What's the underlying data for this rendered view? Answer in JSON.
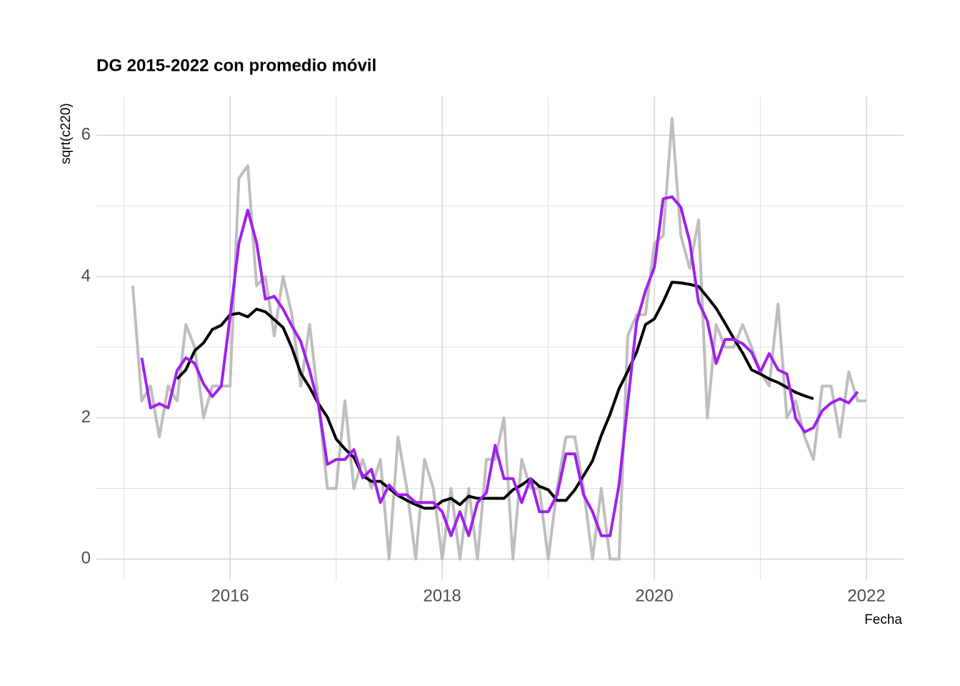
{
  "chart_data": {
    "type": "line",
    "title": "DG 2015-2022 con promedio móvil",
    "x_label": "Fecha",
    "y_label": "sqrt(c220)",
    "xlim": [
      2014.74,
      2022.35
    ],
    "ylim": [
      -0.3,
      6.55
    ],
    "xticks": [
      2016,
      2018,
      2020,
      2022
    ],
    "yticks": [
      0,
      2,
      4,
      6
    ],
    "x_minor_grid": [
      2015,
      2017,
      2019,
      2021
    ],
    "y_minor_grid": [
      1,
      3,
      5
    ],
    "grid": true,
    "x": [
      2015.083,
      2015.167,
      2015.25,
      2015.333,
      2015.417,
      2015.5,
      2015.583,
      2015.667,
      2015.75,
      2015.833,
      2015.917,
      2016,
      2016.083,
      2016.167,
      2016.25,
      2016.333,
      2016.417,
      2016.5,
      2016.583,
      2016.667,
      2016.75,
      2016.833,
      2016.917,
      2017,
      2017.083,
      2017.167,
      2017.25,
      2017.333,
      2017.417,
      2017.5,
      2017.583,
      2017.667,
      2017.75,
      2017.833,
      2017.917,
      2018,
      2018.083,
      2018.167,
      2018.25,
      2018.333,
      2018.417,
      2018.5,
      2018.583,
      2018.667,
      2018.75,
      2018.833,
      2018.917,
      2019,
      2019.083,
      2019.167,
      2019.25,
      2019.333,
      2019.417,
      2019.5,
      2019.583,
      2019.667,
      2019.75,
      2019.833,
      2019.917,
      2020,
      2020.083,
      2020.167,
      2020.25,
      2020.333,
      2020.417,
      2020.5,
      2020.583,
      2020.667,
      2020.75,
      2020.833,
      2020.917,
      2021,
      2021.083,
      2021.167,
      2021.25,
      2021.333,
      2021.417,
      2021.5,
      2021.583,
      2021.667,
      2021.75,
      2021.833,
      2021.917,
      2022
    ],
    "series": [
      {
        "color": "#bebebe",
        "values": [
          3.87,
          2.24,
          2.45,
          1.73,
          2.45,
          2.24,
          3.32,
          3.0,
          2.0,
          2.45,
          2.45,
          2.45,
          5.39,
          5.57,
          3.87,
          4.0,
          3.16,
          4.0,
          3.46,
          2.45,
          3.32,
          2.24,
          1.0,
          1.0,
          2.24,
          1.0,
          1.41,
          1.0,
          1.41,
          0,
          1.73,
          1.0,
          0,
          1.41,
          1.0,
          0,
          1.0,
          0,
          1.0,
          0,
          1.41,
          1.41,
          2.0,
          0,
          1.41,
          1.0,
          1.0,
          0,
          1.0,
          1.73,
          1.73,
          1.0,
          0,
          1.0,
          0,
          0,
          3.16,
          3.46,
          3.46,
          4.47,
          4.58,
          6.24,
          4.58,
          4.12,
          4.8,
          2.0,
          3.32,
          3.0,
          3.0,
          3.32,
          3.0,
          2.65,
          2.45,
          3.61,
          2.0,
          2.24,
          1.73,
          1.41,
          2.45,
          2.45,
          1.73,
          2.65,
          2.24,
          2.24
        ]
      },
      {
        "color": "#000000",
        "values": [
          null,
          null,
          null,
          null,
          null,
          2.55,
          2.68,
          2.95,
          3.06,
          3.25,
          3.31,
          3.46,
          3.48,
          3.43,
          3.54,
          3.5,
          3.39,
          3.28,
          2.99,
          2.63,
          2.43,
          2.2,
          2.01,
          1.7,
          1.56,
          1.44,
          1.18,
          1.1,
          1.1,
          1.0,
          0.9,
          0.83,
          0.77,
          0.72,
          0.72,
          0.82,
          0.86,
          0.77,
          0.89,
          0.86,
          0.86,
          0.86,
          0.86,
          0.98,
          1.05,
          1.14,
          1.03,
          0.98,
          0.83,
          0.83,
          0.98,
          1.18,
          1.39,
          1.75,
          2.05,
          2.41,
          2.66,
          2.93,
          3.32,
          3.4,
          3.64,
          3.92,
          3.91,
          3.89,
          3.86,
          3.71,
          3.55,
          3.34,
          3.12,
          2.92,
          2.68,
          2.62,
          2.55,
          2.5,
          2.43,
          2.36,
          2.31,
          2.27,
          null,
          null,
          null,
          null,
          null,
          null
        ]
      },
      {
        "color": "#a020f0",
        "values": [
          null,
          2.85,
          2.14,
          2.2,
          2.14,
          2.67,
          2.85,
          2.77,
          2.48,
          2.3,
          2.45,
          3.43,
          4.47,
          4.94,
          4.48,
          3.68,
          3.72,
          3.54,
          3.3,
          3.08,
          2.67,
          2.19,
          1.34,
          1.41,
          1.41,
          1.55,
          1.15,
          1.27,
          0.8,
          1.05,
          0.91,
          0.91,
          0.8,
          0.8,
          0.8,
          0.67,
          0.33,
          0.67,
          0.33,
          0.8,
          0.94,
          1.61,
          1.14,
          1.14,
          0.8,
          1.14,
          0.67,
          0.67,
          0.91,
          1.49,
          1.49,
          0.91,
          0.67,
          0.33,
          0.33,
          1.05,
          2.21,
          3.36,
          3.8,
          4.13,
          5.1,
          5.13,
          4.98,
          4.5,
          3.64,
          3.37,
          2.77,
          3.11,
          3.11,
          3.05,
          2.93,
          2.65,
          2.91,
          2.68,
          2.62,
          1.99,
          1.8,
          1.86,
          2.1,
          2.21,
          2.27,
          2.21,
          2.37,
          null
        ]
      }
    ]
  }
}
